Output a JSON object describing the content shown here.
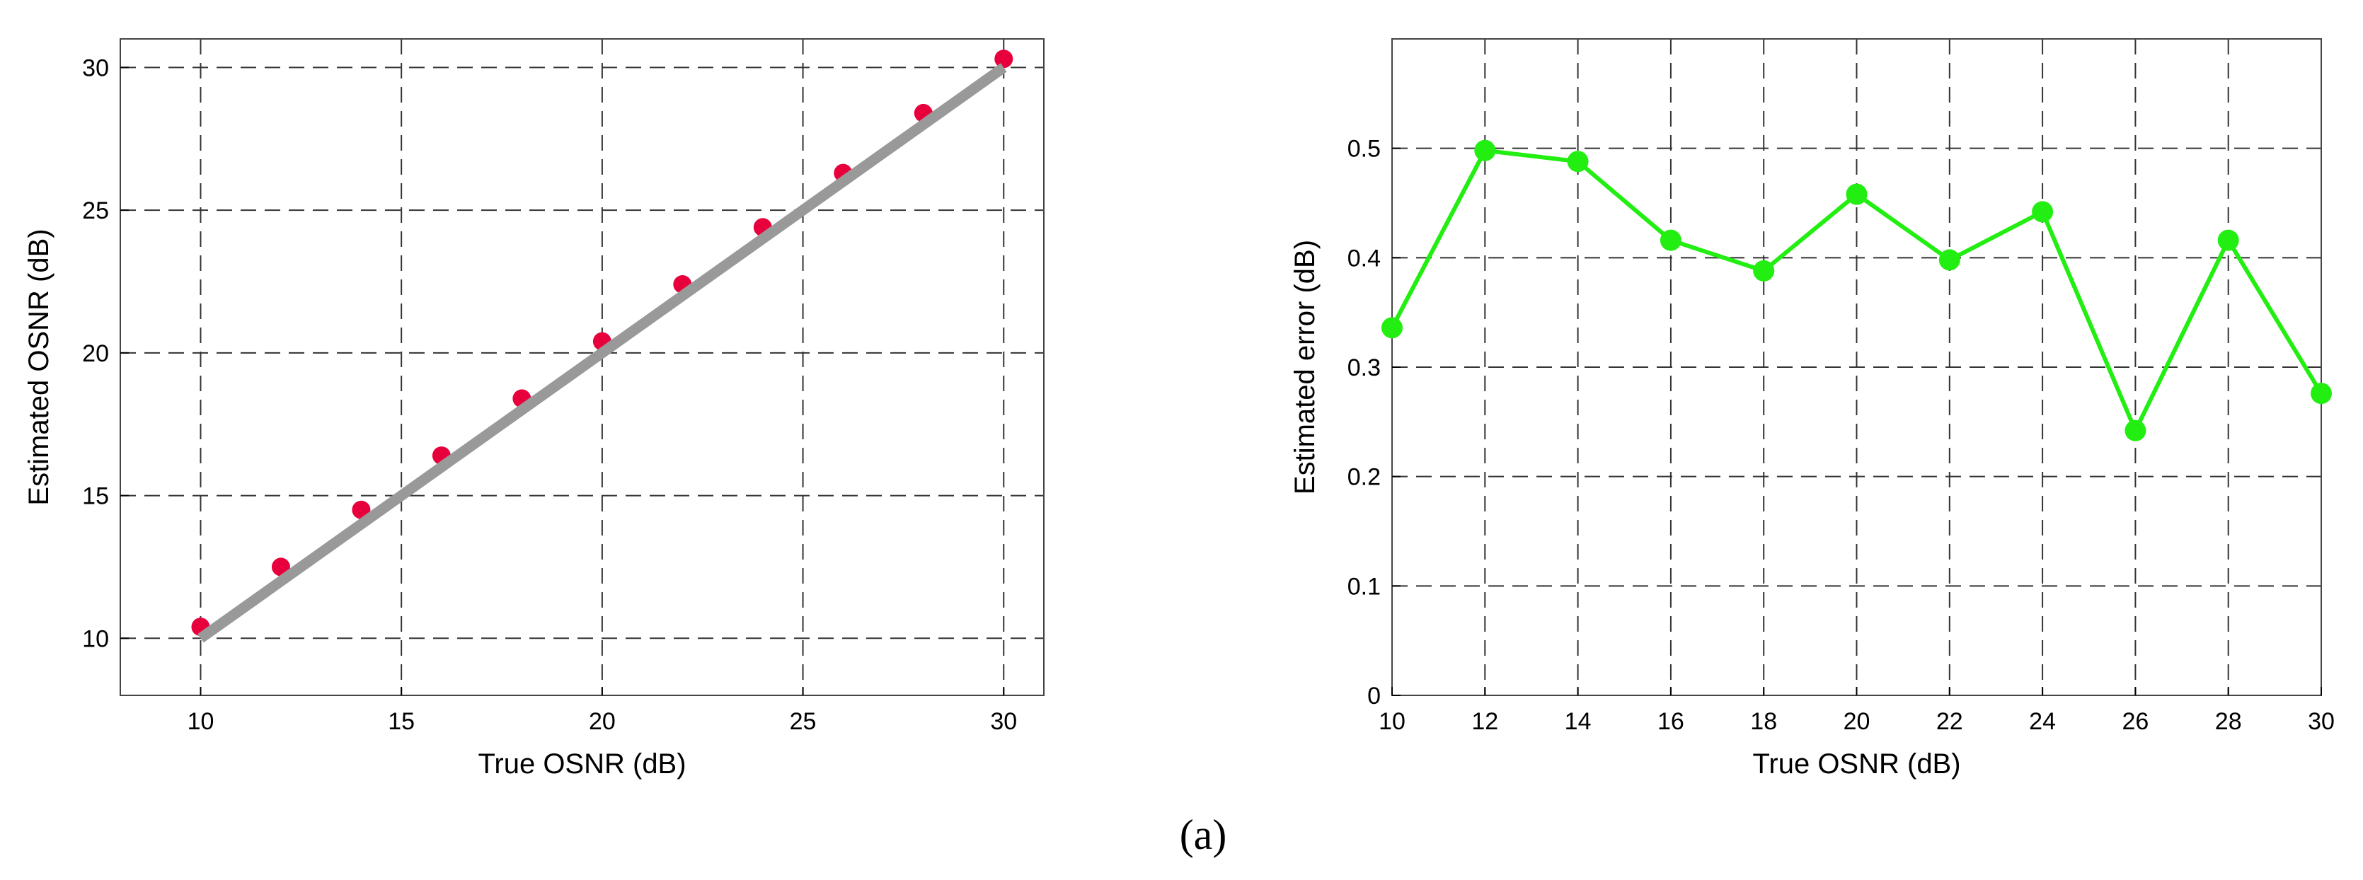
{
  "caption": "(a)",
  "chart_data": [
    {
      "type": "scatter",
      "title": "",
      "xlabel": "True OSNR (dB)",
      "ylabel": "Estimated OSNR (dB)",
      "xlim": [
        8,
        31
      ],
      "ylim": [
        8,
        31
      ],
      "xticks": [
        10,
        15,
        20,
        25,
        30
      ],
      "yticks": [
        10,
        15,
        20,
        25,
        30
      ],
      "grid": true,
      "series": [
        {
          "kind": "points",
          "color": "#e8003c",
          "x": [
            10,
            12,
            14,
            16,
            18,
            20,
            22,
            24,
            26,
            28,
            30
          ],
          "y": [
            10.4,
            12.5,
            14.5,
            16.4,
            18.4,
            20.4,
            22.4,
            24.4,
            26.3,
            28.4,
            30.3
          ]
        },
        {
          "kind": "reference-line",
          "color": "#999999",
          "x": [
            10,
            30
          ],
          "y": [
            10,
            30
          ]
        }
      ]
    },
    {
      "type": "line",
      "title": "",
      "xlabel": "True OSNR (dB)",
      "ylabel": "Estimated error (dB)",
      "xlim": [
        10,
        30
      ],
      "ylim": [
        0,
        0.6
      ],
      "xticks": [
        10,
        12,
        14,
        16,
        18,
        20,
        22,
        24,
        26,
        28,
        30
      ],
      "yticks": [
        0,
        0.1,
        0.2,
        0.3,
        0.4,
        0.5
      ],
      "grid": true,
      "series": [
        {
          "color": "#22ee11",
          "x": [
            10,
            12,
            14,
            16,
            18,
            20,
            22,
            24,
            26,
            28,
            30
          ],
          "values": [
            0.336,
            0.498,
            0.488,
            0.416,
            0.388,
            0.458,
            0.398,
            0.442,
            0.242,
            0.416,
            0.276
          ]
        }
      ]
    }
  ]
}
